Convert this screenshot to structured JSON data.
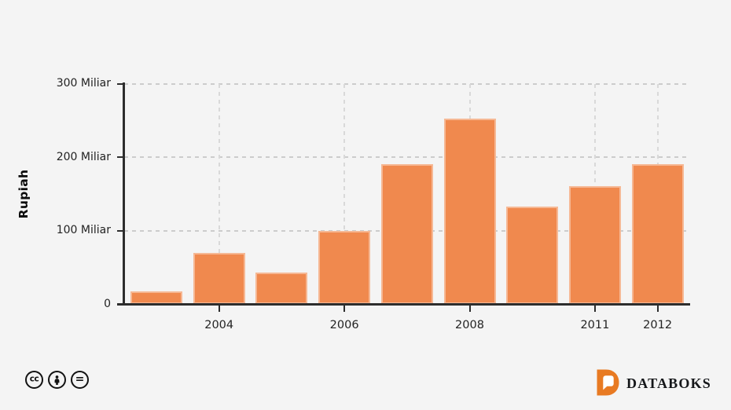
{
  "colors": {
    "background": "#f4f4f4",
    "bar_fill": "#f0894e",
    "axis": "#2d2d2d",
    "grid": "#cccccc",
    "tick_text": "#232323",
    "brand_orange": "#e87a22",
    "icon_black": "#121212"
  },
  "chart_data": {
    "type": "bar",
    "title": "",
    "xlabel": "",
    "ylabel": "Rupiah",
    "unit": "Miliar",
    "categories": [
      "",
      "2004",
      "",
      "2006",
      "",
      "2008",
      "",
      "2011",
      "2012"
    ],
    "values": [
      17,
      70,
      43,
      100,
      190,
      252,
      133,
      160,
      190
    ],
    "ylim": [
      0,
      300
    ],
    "y_ticks": [
      {
        "value": 0,
        "label": "0"
      },
      {
        "value": 100,
        "label": "100 Miliar"
      },
      {
        "value": 200,
        "label": "200 Miliar"
      },
      {
        "value": 300,
        "label": "300 Miliar"
      }
    ],
    "grid": "dashed horizontal at 100/200/300, dashed vertical at labeled year ticks",
    "legend": "none"
  },
  "footer": {
    "license_icons": [
      {
        "name": "cc-icon",
        "glyph": "cc"
      },
      {
        "name": "attribution-icon",
        "glyph": "person"
      },
      {
        "name": "no-derivatives-icon",
        "glyph": "="
      }
    ],
    "brand": {
      "name": "DATABOKS"
    }
  }
}
